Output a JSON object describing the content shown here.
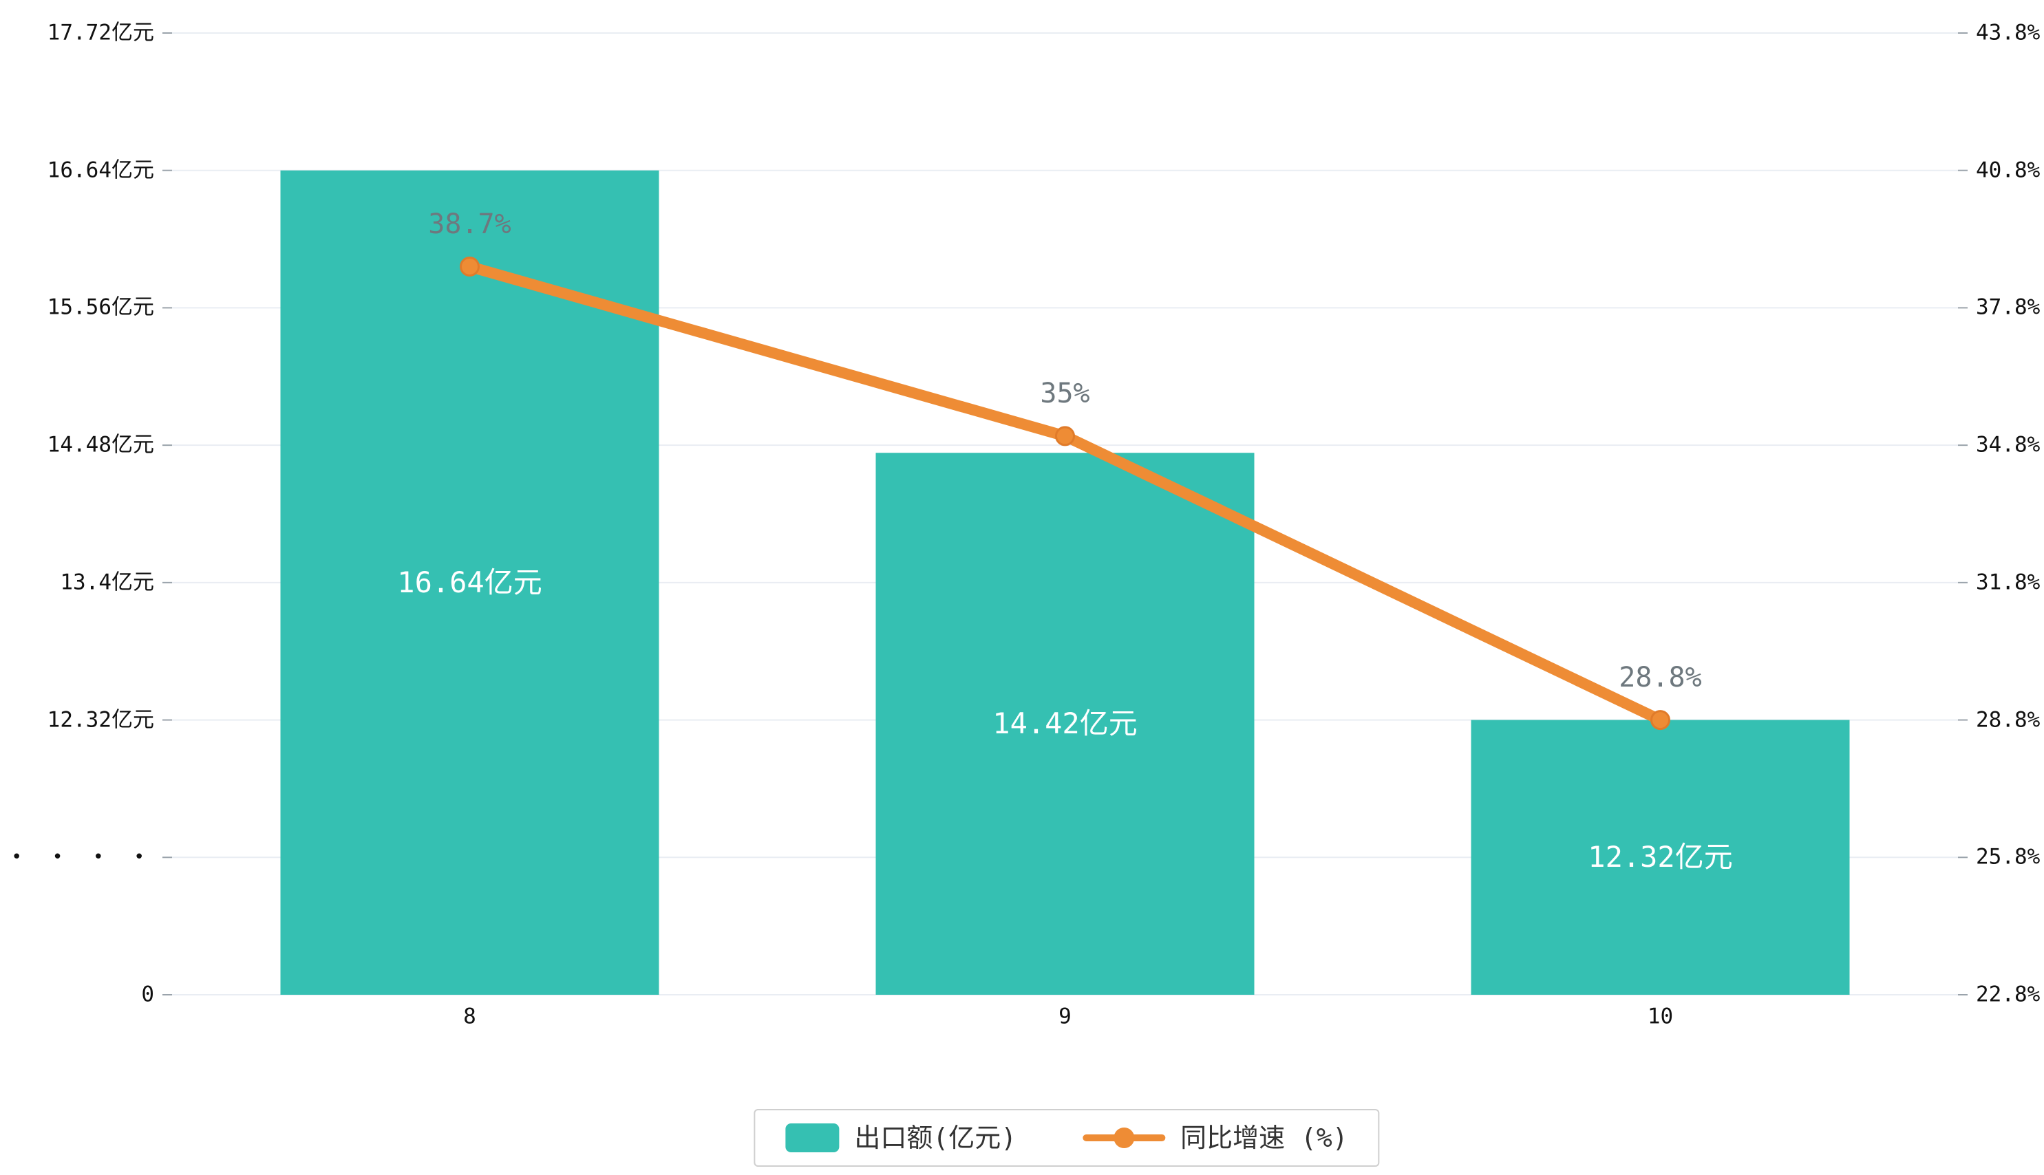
{
  "chart_data": {
    "type": "bar",
    "subtype": "bar+line combo, dual y-axes, broken left axis",
    "categories": [
      "8",
      "9",
      "10"
    ],
    "series": [
      {
        "name": "出口额(亿元)",
        "type": "bar",
        "values": [
          16.64,
          14.42,
          12.32
        ],
        "labels": [
          "16.64亿元",
          "14.42亿元",
          "12.32亿元"
        ],
        "color": "#35c0b2",
        "axis": "left"
      },
      {
        "name": "同比增速 (%)",
        "type": "line",
        "values": [
          38.7,
          35,
          28.8
        ],
        "labels": [
          "38.7%",
          "35%",
          "28.8%"
        ],
        "color": "#ee8c35",
        "axis": "right"
      }
    ],
    "left_axis": {
      "ticks": [
        "17.72亿元",
        "16.64亿元",
        "15.56亿元",
        "14.48亿元",
        "13.4亿元",
        "12.32亿元",
        "• • • •",
        "0"
      ],
      "tick_values": [
        17.72,
        16.64,
        15.56,
        14.48,
        13.4,
        12.32,
        null,
        0
      ],
      "break_marker_index": 6,
      "unit_step_per_gridline": 1.08
    },
    "right_axis": {
      "ticks": [
        "43.8%",
        "40.8%",
        "37.8%",
        "34.8%",
        "31.8%",
        "28.8%",
        "25.8%",
        "22.8%"
      ],
      "min": 22.8,
      "max": 43.8,
      "step": 3
    },
    "grid": true,
    "legend_position": "bottom",
    "title": "",
    "xlabel": "",
    "ylabel": ""
  },
  "legend": {
    "items": [
      {
        "label": "出口额(亿元)",
        "color": "#35c0b2",
        "marker": "bar"
      },
      {
        "label": "同比增速 (%)",
        "color": "#ee8c35",
        "marker": "line"
      }
    ]
  },
  "colors": {
    "bar": "#35c0b2",
    "line": "#ee8c35",
    "line_point_stroke": "#e07b2a",
    "gridline": "#e9edf3",
    "tick_mark": "#9aa3ab",
    "axis_text": "#111111",
    "line_label_text": "#6e787e",
    "bar_label_text": "#ffffff",
    "legend_border": "#cfcfcf",
    "background": "#ffffff"
  }
}
